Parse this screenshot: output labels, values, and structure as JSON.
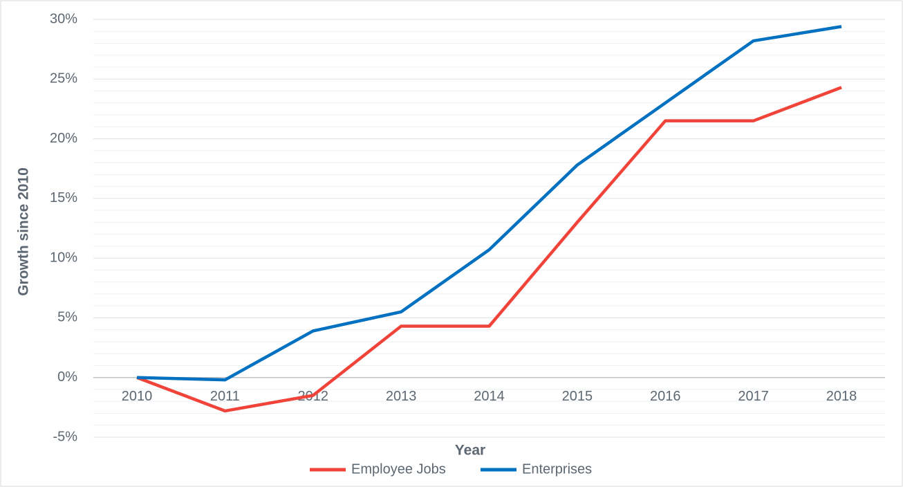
{
  "chart_data": {
    "type": "line",
    "xlabel": "Year",
    "ylabel": "Growth since 2010",
    "categories": [
      "2010",
      "2011",
      "2012",
      "2013",
      "2014",
      "2015",
      "2016",
      "2017",
      "2018"
    ],
    "series": [
      {
        "name": "Employee Jobs",
        "color": "#f0443a",
        "values": [
          0,
          -2.8,
          -1.5,
          4.3,
          4.3,
          13,
          21.5,
          21.5,
          24.3
        ]
      },
      {
        "name": "Enterprises",
        "color": "#0070c0",
        "values": [
          0,
          -0.2,
          3.9,
          5.5,
          10.7,
          17.8,
          23,
          28.2,
          29.4
        ]
      }
    ],
    "ylim": [
      -5,
      30
    ],
    "yticks": [
      {
        "value": -5,
        "label": "-5%"
      },
      {
        "value": 0,
        "label": "0%"
      },
      {
        "value": 5,
        "label": "5%"
      },
      {
        "value": 10,
        "label": "10%"
      },
      {
        "value": 15,
        "label": "15%"
      },
      {
        "value": 20,
        "label": "20%"
      },
      {
        "value": 25,
        "label": "25%"
      },
      {
        "value": 30,
        "label": "30%"
      }
    ],
    "y_minor_ticks": [
      -4,
      -3,
      -2,
      -1,
      1,
      2,
      3,
      4,
      6,
      7,
      8,
      9,
      11,
      12,
      13,
      14,
      16,
      17,
      18,
      19,
      21,
      22,
      23,
      24,
      26,
      27,
      28,
      29
    ],
    "grid": true,
    "legend": "bottom"
  }
}
